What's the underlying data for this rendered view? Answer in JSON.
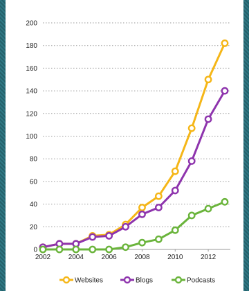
{
  "chart_data": {
    "type": "line",
    "x": [
      2002,
      2003,
      2004,
      2005,
      2006,
      2007,
      2008,
      2009,
      2010,
      2011,
      2012,
      2013
    ],
    "xticks": [
      "2002",
      "2004",
      "2006",
      "2008",
      "2010",
      "2012"
    ],
    "yticks": [
      "0",
      "20",
      "40",
      "60",
      "80",
      "100",
      "120",
      "140",
      "160",
      "180",
      "200"
    ],
    "ylim": [
      0,
      200
    ],
    "xlim": [
      2002,
      2013
    ],
    "grid": "horizontal dotted",
    "legend_position": "bottom",
    "series": [
      {
        "name": "Websites",
        "color": "#f5b617",
        "values": [
          2,
          5,
          5,
          12,
          13,
          22,
          37,
          47,
          69,
          107,
          150,
          182
        ]
      },
      {
        "name": "Blogs",
        "color": "#8e34ad",
        "values": [
          2,
          5,
          5,
          11,
          12,
          20,
          31,
          37,
          52,
          78,
          115,
          140
        ]
      },
      {
        "name": "Podcasts",
        "color": "#6ab43b",
        "values": [
          0,
          0,
          0,
          0,
          0,
          2,
          6,
          9,
          17,
          30,
          36,
          42
        ]
      }
    ]
  }
}
